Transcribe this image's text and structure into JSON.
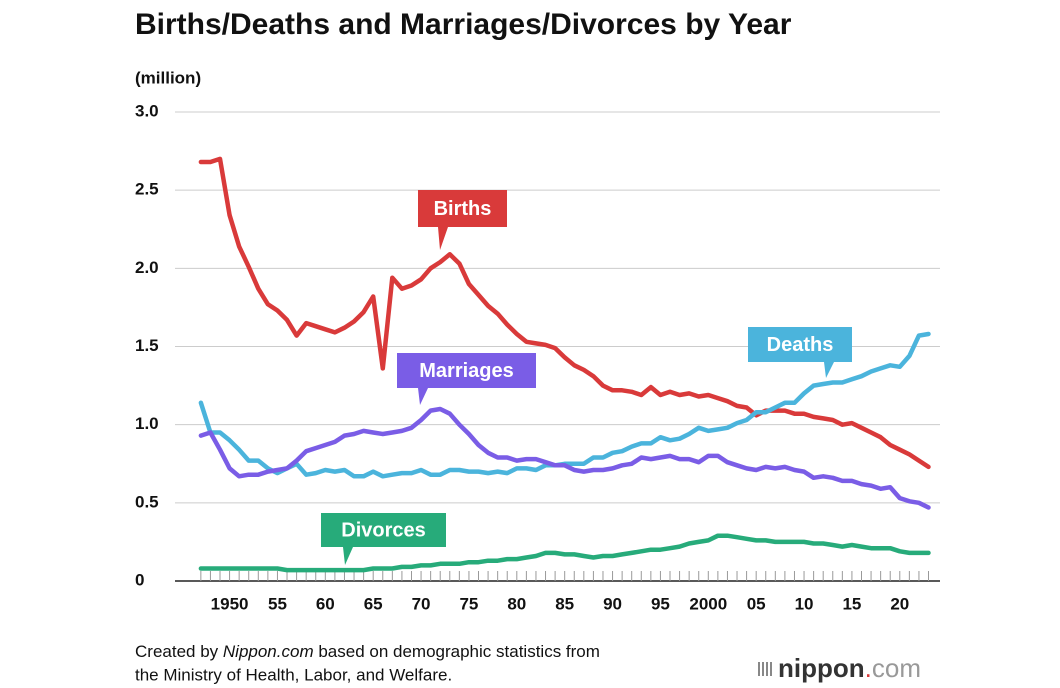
{
  "chart_data": {
    "type": "line",
    "title": "Births/Deaths and Marriages/Divorces by Year",
    "y_label": "(million)",
    "x": [
      1947,
      1948,
      1949,
      1950,
      1951,
      1952,
      1953,
      1954,
      1955,
      1956,
      1957,
      1958,
      1959,
      1960,
      1961,
      1962,
      1963,
      1964,
      1965,
      1966,
      1967,
      1968,
      1969,
      1970,
      1971,
      1972,
      1973,
      1974,
      1975,
      1976,
      1977,
      1978,
      1979,
      1980,
      1981,
      1982,
      1983,
      1984,
      1985,
      1986,
      1987,
      1988,
      1989,
      1990,
      1991,
      1992,
      1993,
      1994,
      1995,
      1996,
      1997,
      1998,
      1999,
      2000,
      2001,
      2002,
      2003,
      2004,
      2005,
      2006,
      2007,
      2008,
      2009,
      2010,
      2011,
      2012,
      2013,
      2014,
      2015,
      2016,
      2017,
      2018,
      2019,
      2020,
      2021,
      2022,
      2023
    ],
    "series": [
      {
        "name": "Births",
        "color": "#d93a3a",
        "values": [
          2.68,
          2.68,
          2.7,
          2.34,
          2.14,
          2.01,
          1.87,
          1.77,
          1.73,
          1.67,
          1.57,
          1.65,
          1.63,
          1.61,
          1.59,
          1.62,
          1.66,
          1.72,
          1.82,
          1.36,
          1.94,
          1.87,
          1.89,
          1.93,
          2.0,
          2.04,
          2.09,
          2.03,
          1.9,
          1.83,
          1.76,
          1.71,
          1.64,
          1.58,
          1.53,
          1.52,
          1.51,
          1.49,
          1.43,
          1.38,
          1.35,
          1.31,
          1.25,
          1.22,
          1.22,
          1.21,
          1.19,
          1.24,
          1.19,
          1.21,
          1.19,
          1.2,
          1.18,
          1.19,
          1.17,
          1.15,
          1.12,
          1.11,
          1.06,
          1.09,
          1.09,
          1.09,
          1.07,
          1.07,
          1.05,
          1.04,
          1.03,
          1.0,
          1.01,
          0.98,
          0.95,
          0.92,
          0.87,
          0.84,
          0.81,
          0.77,
          0.73
        ]
      },
      {
        "name": "Deaths",
        "color": "#4bb4dc",
        "values": [
          1.14,
          0.95,
          0.95,
          0.9,
          0.84,
          0.77,
          0.77,
          0.72,
          0.69,
          0.72,
          0.75,
          0.68,
          0.69,
          0.71,
          0.7,
          0.71,
          0.67,
          0.67,
          0.7,
          0.67,
          0.68,
          0.69,
          0.69,
          0.71,
          0.68,
          0.68,
          0.71,
          0.71,
          0.7,
          0.7,
          0.69,
          0.7,
          0.69,
          0.72,
          0.72,
          0.71,
          0.74,
          0.74,
          0.75,
          0.75,
          0.75,
          0.79,
          0.79,
          0.82,
          0.83,
          0.86,
          0.88,
          0.88,
          0.92,
          0.9,
          0.91,
          0.94,
          0.98,
          0.96,
          0.97,
          0.98,
          1.01,
          1.03,
          1.08,
          1.08,
          1.11,
          1.14,
          1.14,
          1.2,
          1.25,
          1.26,
          1.27,
          1.27,
          1.29,
          1.31,
          1.34,
          1.36,
          1.38,
          1.37,
          1.44,
          1.57,
          1.58
        ]
      },
      {
        "name": "Marriages",
        "color": "#7a5de6",
        "values": [
          0.93,
          0.95,
          0.84,
          0.72,
          0.67,
          0.68,
          0.68,
          0.7,
          0.71,
          0.72,
          0.77,
          0.83,
          0.85,
          0.87,
          0.89,
          0.93,
          0.94,
          0.96,
          0.95,
          0.94,
          0.95,
          0.96,
          0.98,
          1.03,
          1.09,
          1.1,
          1.07,
          1.0,
          0.94,
          0.87,
          0.82,
          0.79,
          0.79,
          0.77,
          0.78,
          0.78,
          0.76,
          0.74,
          0.74,
          0.71,
          0.7,
          0.71,
          0.71,
          0.72,
          0.74,
          0.75,
          0.79,
          0.78,
          0.79,
          0.8,
          0.78,
          0.78,
          0.76,
          0.8,
          0.8,
          0.76,
          0.74,
          0.72,
          0.71,
          0.73,
          0.72,
          0.73,
          0.71,
          0.7,
          0.66,
          0.67,
          0.66,
          0.64,
          0.64,
          0.62,
          0.61,
          0.59,
          0.6,
          0.53,
          0.51,
          0.5,
          0.47
        ]
      },
      {
        "name": "Divorces",
        "color": "#27ab7a",
        "values": [
          0.08,
          0.08,
          0.08,
          0.08,
          0.08,
          0.08,
          0.08,
          0.08,
          0.08,
          0.07,
          0.07,
          0.07,
          0.07,
          0.07,
          0.07,
          0.07,
          0.07,
          0.07,
          0.08,
          0.08,
          0.08,
          0.09,
          0.09,
          0.1,
          0.1,
          0.11,
          0.11,
          0.11,
          0.12,
          0.12,
          0.13,
          0.13,
          0.14,
          0.14,
          0.15,
          0.16,
          0.18,
          0.18,
          0.17,
          0.17,
          0.16,
          0.15,
          0.16,
          0.16,
          0.17,
          0.18,
          0.19,
          0.2,
          0.2,
          0.21,
          0.22,
          0.24,
          0.25,
          0.26,
          0.29,
          0.29,
          0.28,
          0.27,
          0.26,
          0.26,
          0.25,
          0.25,
          0.25,
          0.25,
          0.24,
          0.24,
          0.23,
          0.22,
          0.23,
          0.22,
          0.21,
          0.21,
          0.21,
          0.19,
          0.18,
          0.18,
          0.18
        ]
      }
    ],
    "xlim": [
      1944.3,
      2024.2
    ],
    "xticks": [
      1950,
      {
        "value": 1955,
        "label": "55"
      },
      {
        "value": 1960,
        "label": "60"
      },
      {
        "value": 1965,
        "label": "65"
      },
      {
        "value": 1970,
        "label": "70"
      },
      {
        "value": 1975,
        "label": "75"
      },
      {
        "value": 1980,
        "label": "80"
      },
      {
        "value": 1985,
        "label": "85"
      },
      {
        "value": 1990,
        "label": "90"
      },
      {
        "value": 1995,
        "label": "95"
      },
      2000,
      {
        "value": 2005,
        "label": "05"
      },
      {
        "value": 2010,
        "label": "10"
      },
      {
        "value": 2015,
        "label": "15"
      },
      {
        "value": 2020,
        "label": "20"
      }
    ],
    "ylim": [
      0,
      3
    ],
    "yticks": [
      0,
      {
        "value": 0.5,
        "label": "0.5"
      },
      {
        "value": 1,
        "label": "1.0"
      },
      {
        "value": 1.5,
        "label": "1.5"
      },
      {
        "value": 2,
        "label": "2.0"
      },
      {
        "value": 2.5,
        "label": "2.5"
      },
      {
        "value": 3,
        "label": "3.0"
      }
    ],
    "grid": true,
    "source": [
      "Created by ",
      "Nippon.com",
      " based on demographic statistics from",
      "the Ministry of Health, Labor, and Welfare."
    ],
    "logo": [
      "nippon",
      ".",
      "com"
    ]
  }
}
